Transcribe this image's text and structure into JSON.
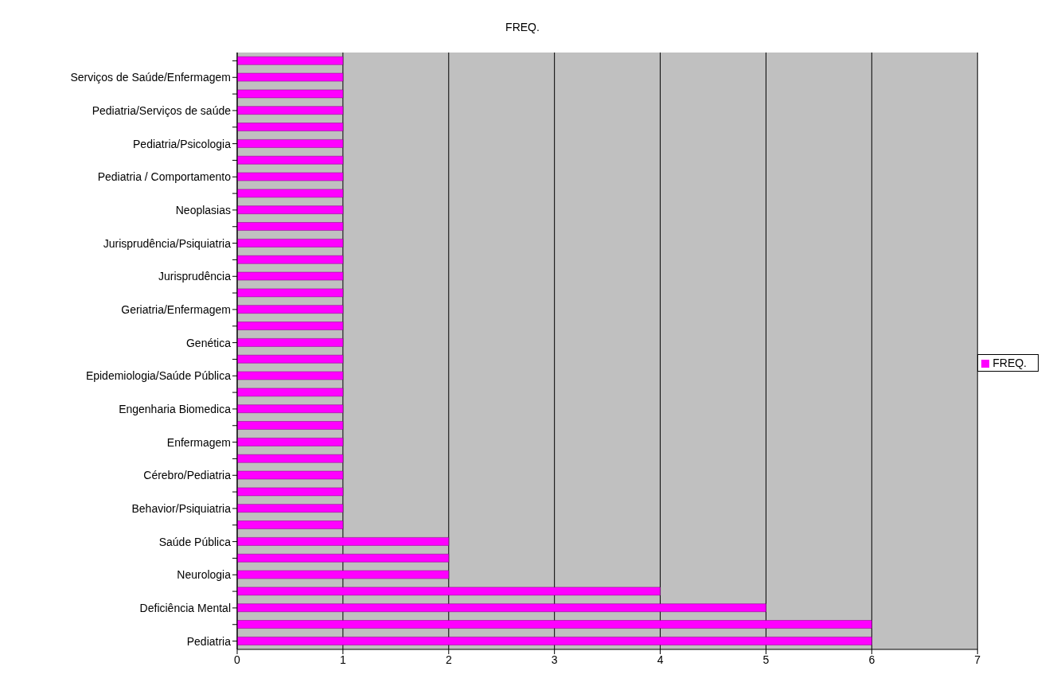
{
  "chart_data": {
    "type": "bar",
    "orientation": "horizontal",
    "title": "FREQ.",
    "categories": [
      null,
      "Serviços de Saúde/Enfermagem",
      null,
      "Pediatria/Serviços de saúde",
      null,
      "Pediatria/Psicologia",
      null,
      "Pediatria / Comportamento",
      null,
      "Neoplasias",
      null,
      "Jurisprudência/Psiquiatria",
      null,
      "Jurisprudência",
      null,
      "Geriatria/Enfermagem",
      null,
      "Genética",
      null,
      "Epidemiologia/Saúde Pública",
      null,
      "Engenharia Biomedica",
      null,
      "Enfermagem",
      null,
      "Cérebro/Pediatria",
      null,
      "Behavior/Psiquiatria",
      null,
      "Saúde Pública",
      null,
      "Neurologia",
      null,
      "Deficiência Mental",
      null,
      "Pediatria"
    ],
    "series": [
      {
        "name": "FREQ.",
        "color": "#ff00ff",
        "values": [
          1,
          1,
          1,
          1,
          1,
          1,
          1,
          1,
          1,
          1,
          1,
          1,
          1,
          1,
          1,
          1,
          1,
          1,
          1,
          1,
          1,
          1,
          1,
          1,
          1,
          1,
          1,
          1,
          1,
          2,
          2,
          2,
          4,
          5,
          6,
          6
        ]
      }
    ],
    "xlim": [
      0,
      7
    ],
    "xticks": [
      0,
      1,
      2,
      3,
      4,
      5,
      6,
      7
    ],
    "grid": "x",
    "legend": "right"
  }
}
